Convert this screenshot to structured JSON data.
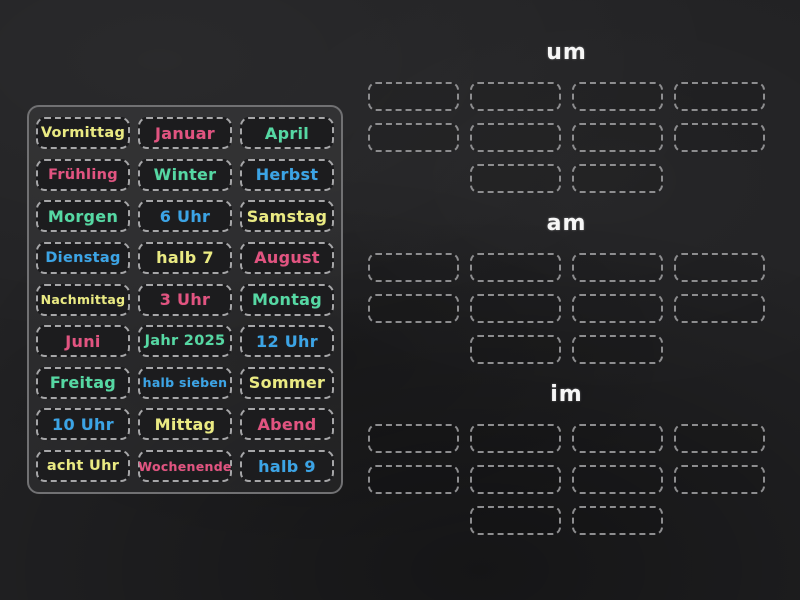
{
  "colors": {
    "yellow": "#eaea82",
    "pink": "#e25380",
    "green": "#55d8a3",
    "blue": "#3ba4e6",
    "header_text": "#f6f6f6",
    "tile_border": "#a6a6a8",
    "slot_border": "#8d8d8f",
    "panel_border": "#717173",
    "background": "#222224"
  },
  "tiles": [
    {
      "label": "Vormittag",
      "color": "yellow"
    },
    {
      "label": "Januar",
      "color": "pink"
    },
    {
      "label": "April",
      "color": "green"
    },
    {
      "label": "Frühling",
      "color": "pink"
    },
    {
      "label": "Winter",
      "color": "green"
    },
    {
      "label": "Herbst",
      "color": "blue"
    },
    {
      "label": "Morgen",
      "color": "green"
    },
    {
      "label": "6 Uhr",
      "color": "blue"
    },
    {
      "label": "Samstag",
      "color": "yellow"
    },
    {
      "label": "Dienstag",
      "color": "blue"
    },
    {
      "label": "halb 7",
      "color": "yellow"
    },
    {
      "label": "August",
      "color": "pink"
    },
    {
      "label": "Nachmittag",
      "color": "yellow"
    },
    {
      "label": "3 Uhr",
      "color": "pink"
    },
    {
      "label": "Montag",
      "color": "green"
    },
    {
      "label": "Juni",
      "color": "pink"
    },
    {
      "label": "Jahr 2025",
      "color": "green"
    },
    {
      "label": "12 Uhr",
      "color": "blue"
    },
    {
      "label": "Freitag",
      "color": "green"
    },
    {
      "label": "halb sieben",
      "color": "blue"
    },
    {
      "label": "Sommer",
      "color": "yellow"
    },
    {
      "label": "10 Uhr",
      "color": "blue"
    },
    {
      "label": "Mittag",
      "color": "yellow"
    },
    {
      "label": "Abend",
      "color": "pink"
    },
    {
      "label": "acht Uhr",
      "color": "yellow"
    },
    {
      "label": "Wochenende",
      "color": "pink"
    },
    {
      "label": "halb 9",
      "color": "blue"
    }
  ],
  "groups": [
    {
      "label": "um",
      "slot_rows": [
        4,
        4,
        2
      ]
    },
    {
      "label": "am",
      "slot_rows": [
        4,
        4,
        2
      ]
    },
    {
      "label": "im",
      "slot_rows": [
        4,
        4,
        2
      ]
    }
  ]
}
